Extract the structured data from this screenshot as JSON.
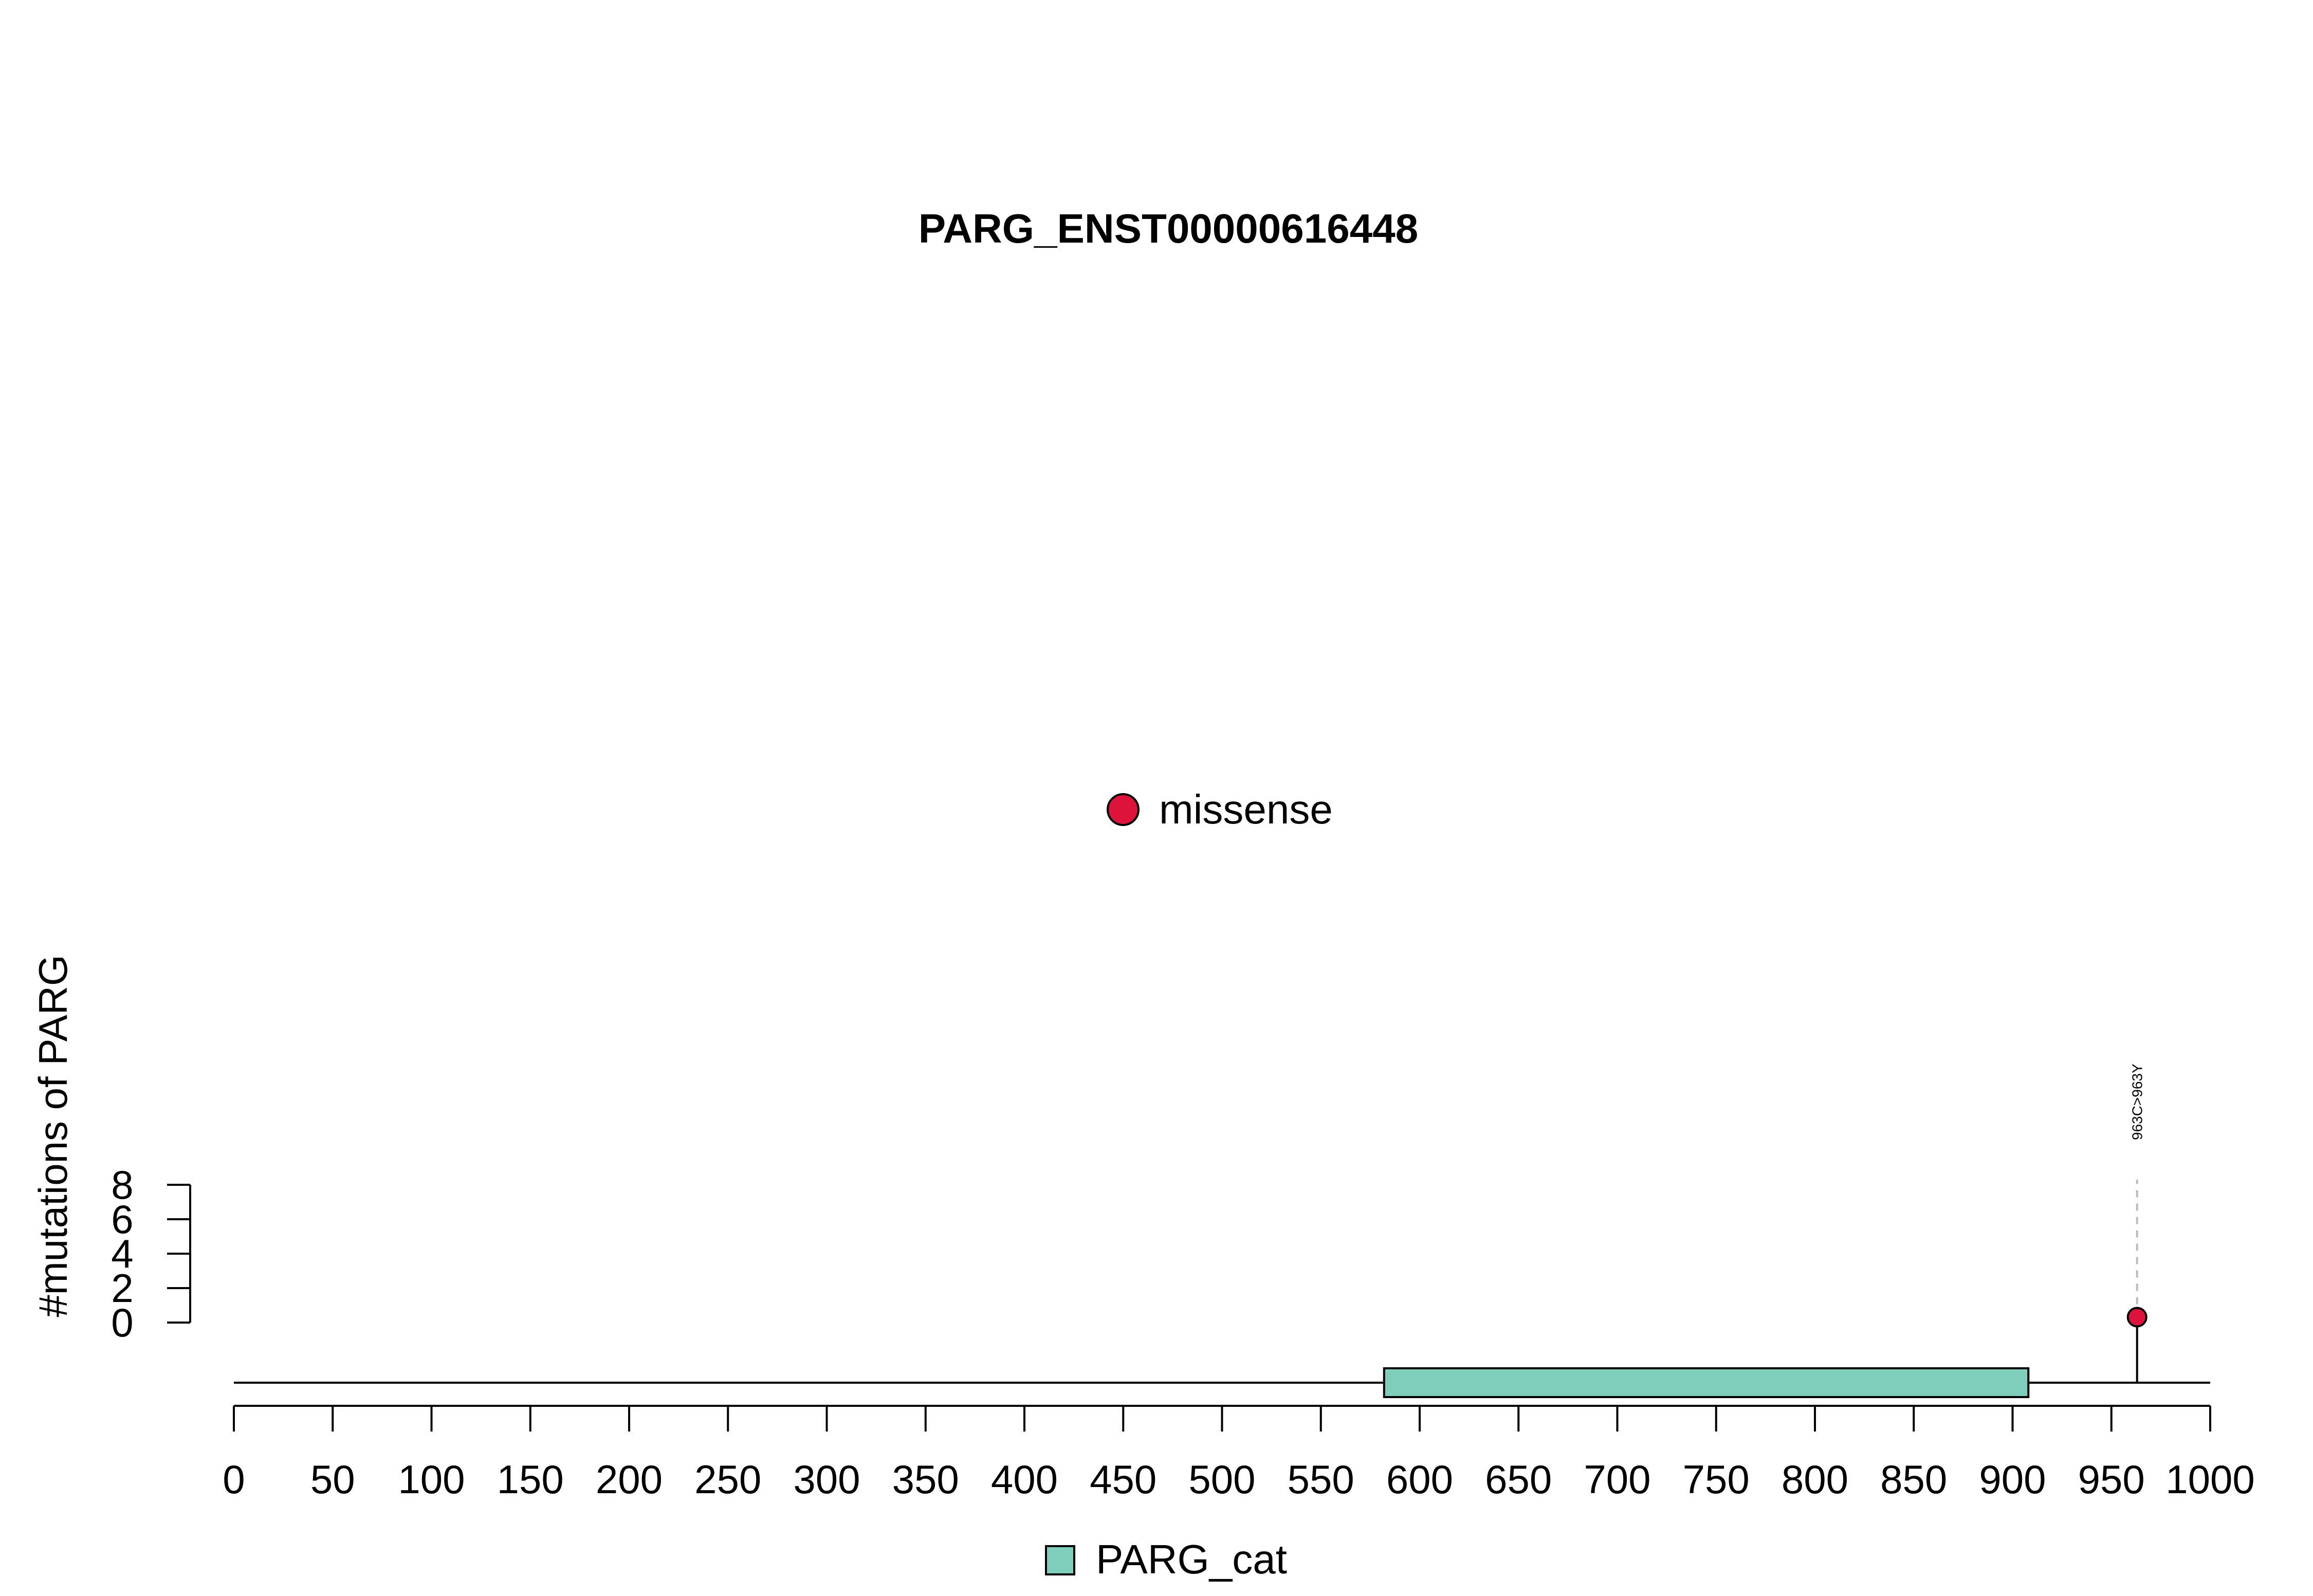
{
  "chart_data": {
    "type": "lollipop",
    "title": "PARG_ENST00000616448",
    "ylabel": "#mutations of PARG",
    "xlabel": "",
    "xlim": [
      0,
      1000
    ],
    "xticks": [
      0,
      50,
      100,
      150,
      200,
      250,
      300,
      350,
      400,
      450,
      500,
      550,
      600,
      650,
      700,
      750,
      800,
      850,
      900,
      950,
      1000
    ],
    "ylim": [
      0,
      8
    ],
    "yticks": [
      0,
      2,
      4,
      6,
      8
    ],
    "protein_length": 1000,
    "domains": [
      {
        "name": "PARG_cat",
        "start": 582,
        "end": 908,
        "color": "#7FCDBB"
      }
    ],
    "mutations": [
      {
        "position": 963,
        "count": 1,
        "type": "missense",
        "label": "963C>963Y",
        "color": "#DC143C"
      }
    ],
    "mutation_legend": [
      {
        "label": "missense",
        "color": "#DC143C"
      }
    ],
    "domain_legend": [
      {
        "label": "PARG_cat",
        "color": "#7FCDBB"
      }
    ]
  }
}
